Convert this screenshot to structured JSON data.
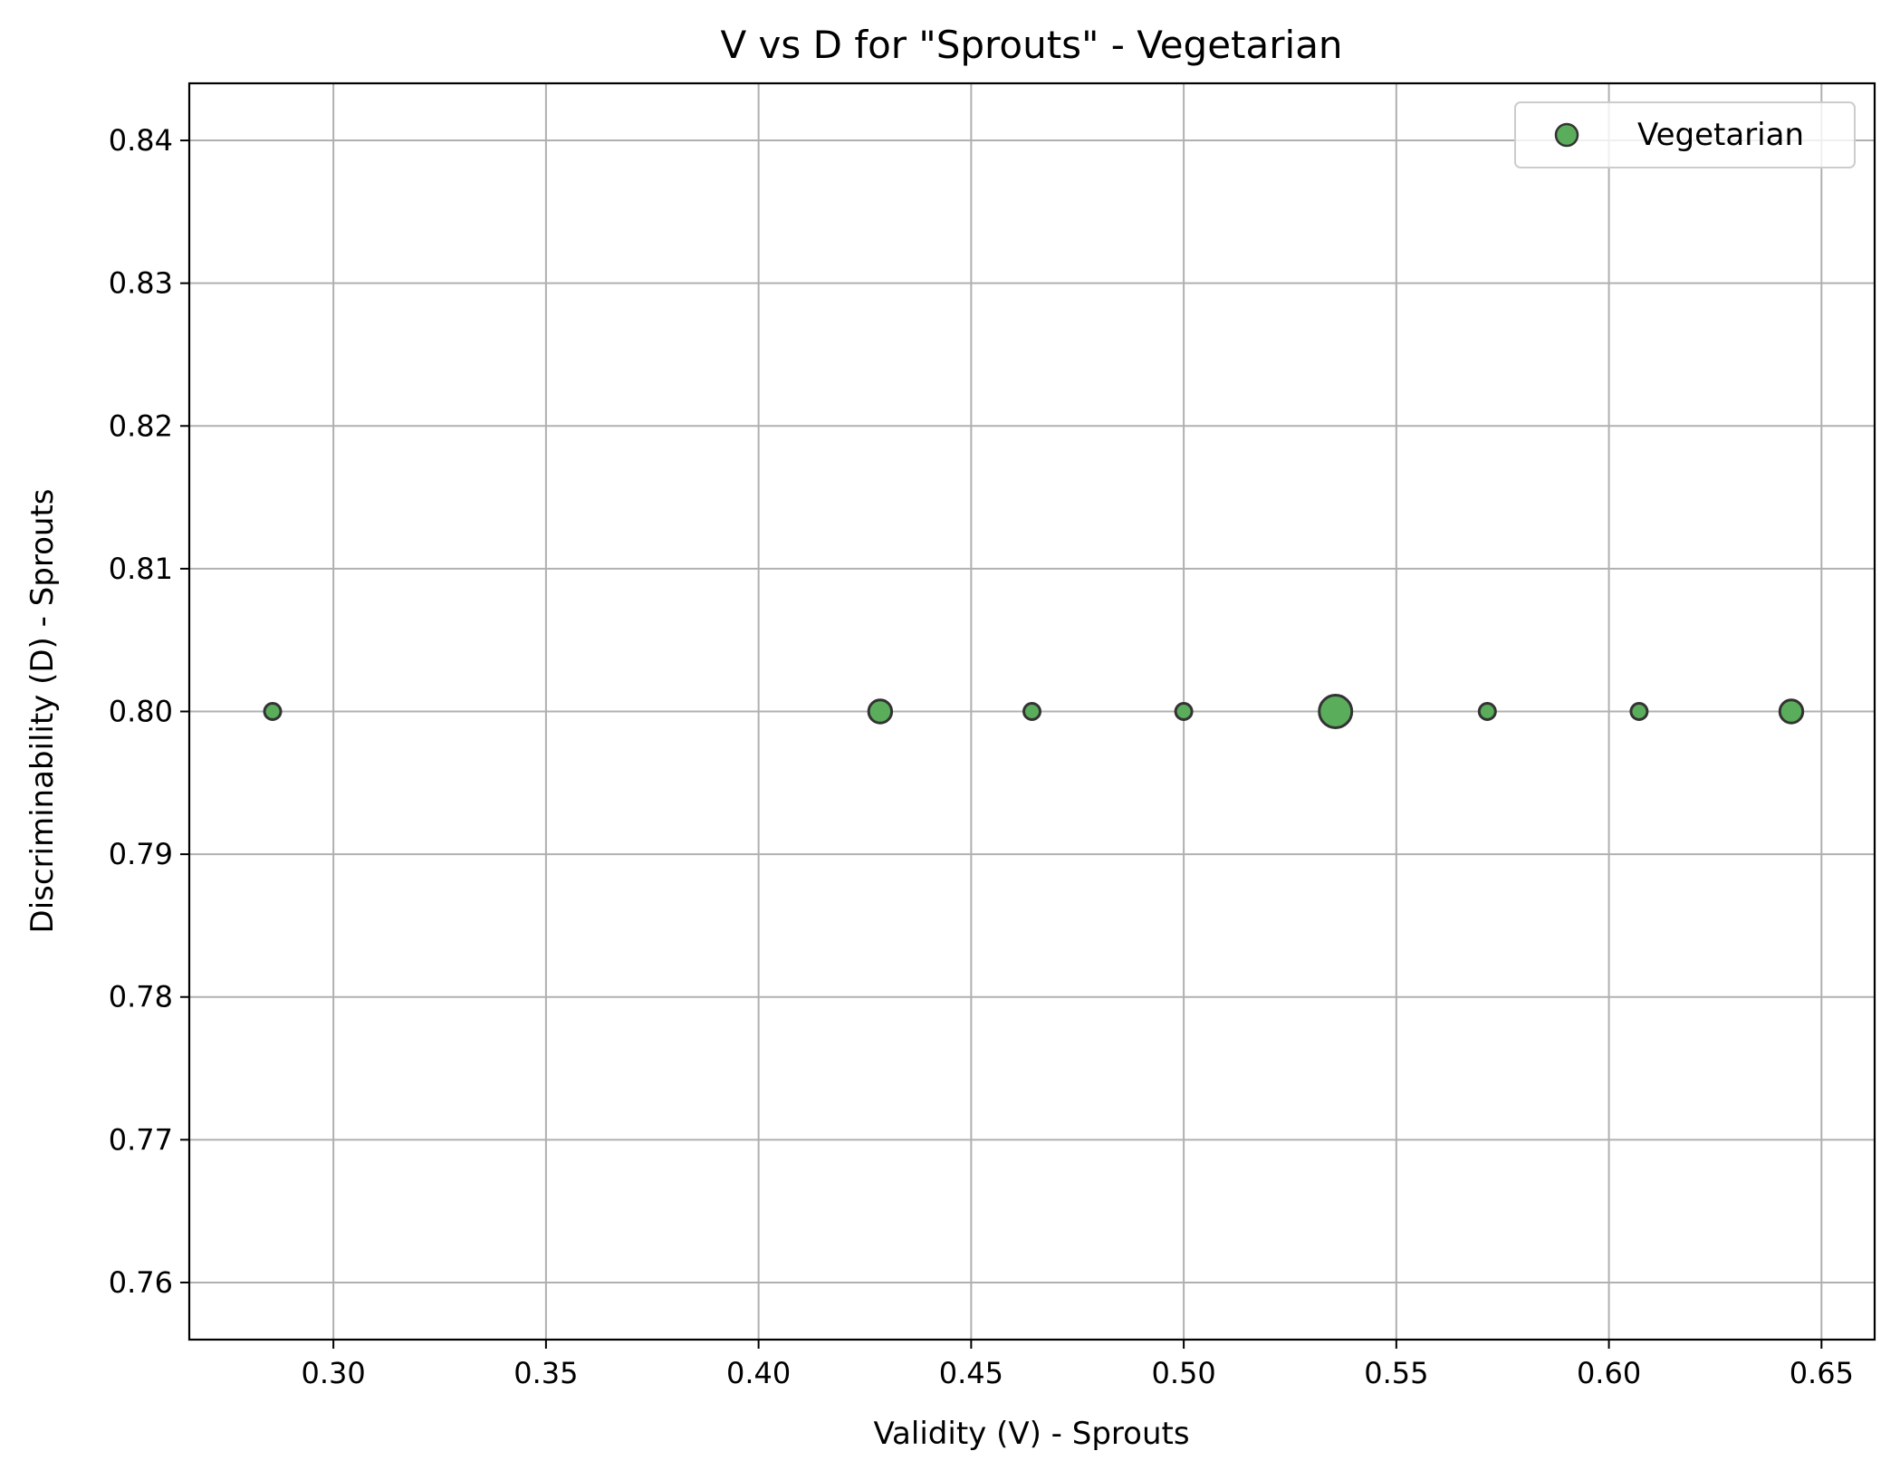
{
  "chart_data": {
    "type": "scatter",
    "title": "V vs D for \"Sprouts\" - Vegetarian",
    "xlabel": "Validity (V) - Sprouts",
    "ylabel": "Discriminability (D) - Sprouts",
    "xlim": [
      0.2661,
      0.6625
    ],
    "ylim": [
      0.756,
      0.844
    ],
    "xticks": [
      0.3,
      0.35,
      0.4,
      0.45,
      0.5,
      0.55,
      0.6,
      0.65
    ],
    "yticks": [
      0.76,
      0.77,
      0.78,
      0.79,
      0.8,
      0.81,
      0.82,
      0.83,
      0.84
    ],
    "grid": true,
    "legend_position": "top-right",
    "series": [
      {
        "name": "Vegetarian",
        "color": "#5aad5a",
        "edge_color": "#333333",
        "points": [
          {
            "x": 0.2857,
            "y": 0.8,
            "size": 1
          },
          {
            "x": 0.4286,
            "y": 0.8,
            "size": 2
          },
          {
            "x": 0.4643,
            "y": 0.8,
            "size": 1
          },
          {
            "x": 0.5,
            "y": 0.8,
            "size": 1
          },
          {
            "x": 0.5357,
            "y": 0.8,
            "size": 4
          },
          {
            "x": 0.5714,
            "y": 0.8,
            "size": 1
          },
          {
            "x": 0.6071,
            "y": 0.8,
            "size": 1
          },
          {
            "x": 0.6429,
            "y": 0.8,
            "size": 2
          }
        ]
      }
    ]
  }
}
